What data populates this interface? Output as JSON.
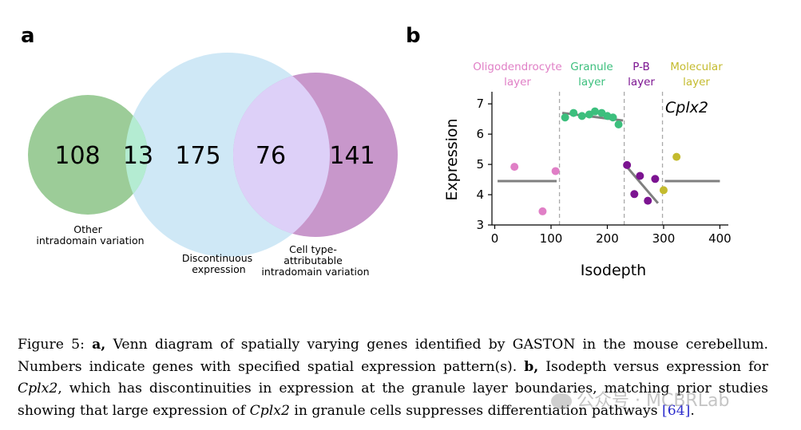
{
  "panel_a": {
    "label": "a",
    "regions": {
      "other_only": "108",
      "other_discontinuous": "13",
      "discontinuous_only": "175",
      "discontinuous_celltype": "76",
      "celltype_only": "141"
    },
    "sets": {
      "other": [
        "Other",
        "intradomain variation"
      ],
      "discontinuous": [
        "Discontinuous",
        "expression"
      ],
      "celltype": [
        "Cell type-",
        "attributable",
        "intradomain variation"
      ]
    },
    "colors": {
      "other": "#9ccc98",
      "discontinuous": "#cfe8f6",
      "celltype": "#c897cb",
      "overlap_other_disc": "#b4ecd2",
      "overlap_disc_celltype": "#ddd0f8"
    }
  },
  "panel_b": {
    "label": "b",
    "gene": "Cplx2",
    "layers": [
      {
        "name": [
          "Oligodendrocyte",
          "layer"
        ],
        "color": "#e07fc6"
      },
      {
        "name": [
          "Granule",
          "layer"
        ],
        "color": "#3cbf7d"
      },
      {
        "name": [
          "P-B",
          "layer"
        ],
        "color": "#7c1491"
      },
      {
        "name": [
          "Molecular",
          "layer"
        ],
        "color": "#c4bb2e"
      }
    ],
    "xlabel": "Isodepth",
    "ylabel": "Expression"
  },
  "chart_data": {
    "type": "scatter",
    "xlabel": "Isodepth",
    "ylabel": "Expression",
    "xlim": [
      -5,
      415
    ],
    "ylim": [
      3,
      7.4
    ],
    "xticks": [
      0,
      100,
      200,
      300,
      400
    ],
    "yticks": [
      3,
      4,
      5,
      6,
      7
    ],
    "boundaries": [
      115,
      230,
      298
    ],
    "series": [
      {
        "name": "Oligodendrocyte layer",
        "color": "#e07fc6",
        "x": [
          35,
          85,
          108
        ],
        "y": [
          4.92,
          3.45,
          4.78
        ]
      },
      {
        "name": "Granule layer",
        "color": "#3cbf7d",
        "x": [
          125,
          140,
          155,
          168,
          178,
          190,
          200,
          210,
          220
        ],
        "y": [
          6.55,
          6.7,
          6.6,
          6.65,
          6.75,
          6.7,
          6.6,
          6.55,
          6.32
        ]
      },
      {
        "name": "P-B layer",
        "color": "#7c1491",
        "x": [
          235,
          248,
          258,
          272,
          285
        ],
        "y": [
          4.98,
          4.02,
          4.62,
          3.8,
          4.52
        ]
      },
      {
        "name": "Molecular layer",
        "color": "#c4bb2e",
        "x": [
          300,
          323
        ],
        "y": [
          4.15,
          5.25
        ]
      }
    ],
    "fit_lines": [
      {
        "x": [
          5,
          110
        ],
        "y": [
          4.45,
          4.45
        ]
      },
      {
        "x": [
          120,
          228
        ],
        "y": [
          6.7,
          6.45
        ]
      },
      {
        "x": [
          232,
          290
        ],
        "y": [
          4.98,
          3.72
        ]
      },
      {
        "x": [
          302,
          400
        ],
        "y": [
          4.45,
          4.45
        ]
      }
    ],
    "fit_color": "#7f7f7f"
  },
  "caption": {
    "fig": "Figure 5: ",
    "a": "a,",
    "t1": " Venn diagram of spatially varying genes identified by GASTON in the mouse cerebellum. Numbers indicate genes with specified spatial expression pattern(s). ",
    "b": "b,",
    "t2": " Isodepth versus expression for ",
    "gene1": "Cplx2",
    "t3": ", which has discontinuities in expression at the granule layer boundaries, matching prior studies showing that large expression of ",
    "gene2": "Cplx2",
    "t4": " in granule cells suppresses differentiation pathways ",
    "cite": "[64]",
    "t5": "."
  },
  "watermark": {
    "text": "公众号 · MCBRLab"
  }
}
